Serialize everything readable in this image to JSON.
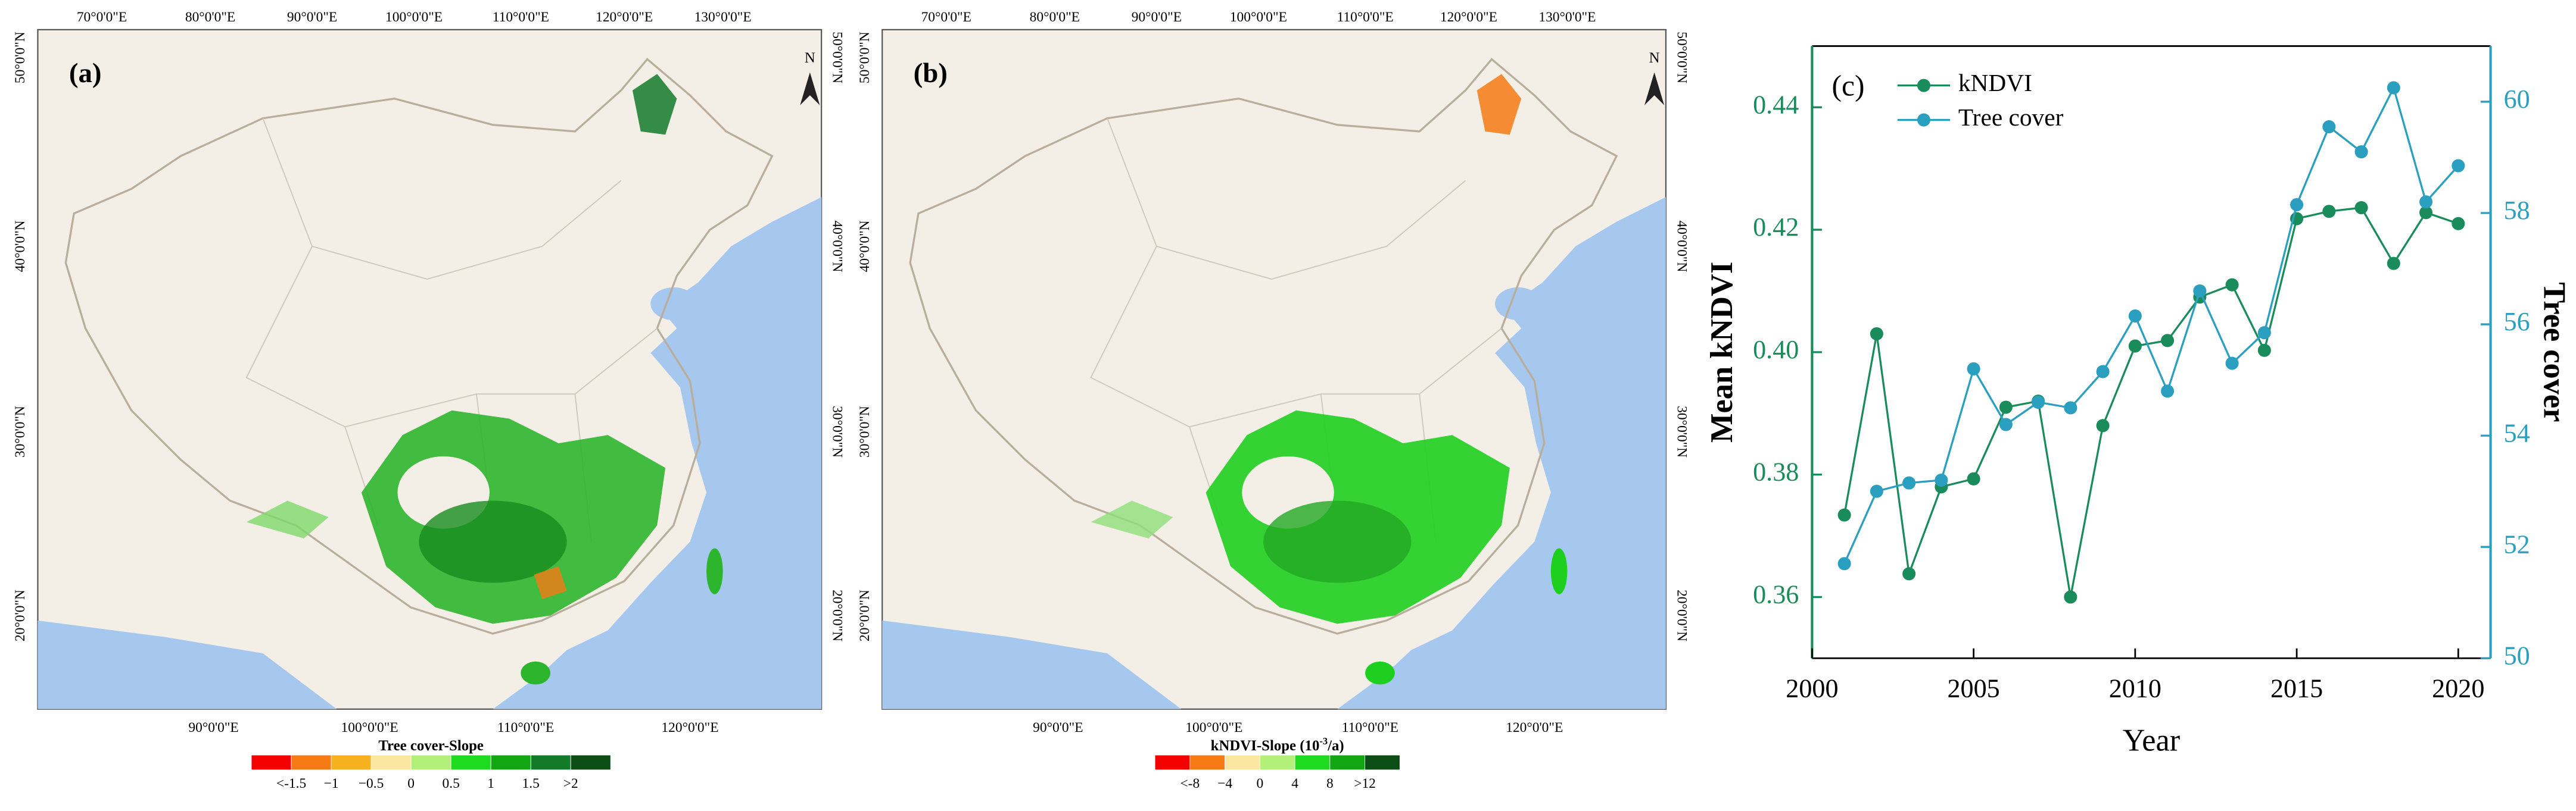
{
  "maps": [
    {
      "label": "(a)",
      "north": "N",
      "top_ticks": [
        "70°0'0\"E",
        "80°0'0\"E",
        "90°0'0\"E",
        "100°0'0\"E",
        "110°0'0\"E",
        "120°0'0\"E",
        "130°0'0\"E"
      ],
      "bottom_ticks": [
        "90°0'0\"E",
        "100°0'0\"E",
        "110°0'0\"E",
        "120°0'0\"E"
      ],
      "left_ticks": [
        "50°0'0\"N",
        "40°0'0\"N",
        "30°0'0\"N",
        "20°0'0\"N"
      ],
      "right_ticks": [
        "50°0'0\"N",
        "40°0'0\"N",
        "30°0'0\"N",
        "20°0'0\"N"
      ],
      "legend": {
        "title": "Tree cover-Slope",
        "colors": [
          "#f50000",
          "#f57a14",
          "#f7b01e",
          "#fae6a0",
          "#b2f07a",
          "#1fdb1f",
          "#12a612",
          "#137a2a",
          "#0b4d14"
        ],
        "labels": [
          "<-1.5",
          "−1",
          "−0.5",
          "0",
          "0.5",
          "1",
          "1.5",
          ">2"
        ]
      }
    },
    {
      "label": "(b)",
      "north": "N",
      "top_ticks": [
        "70°0'0\"E",
        "80°0'0\"E",
        "90°0'0\"E",
        "100°0'0\"E",
        "110°0'0\"E",
        "120°0'0\"E",
        "130°0'0\"E"
      ],
      "bottom_ticks": [
        "90°0'0\"E",
        "100°0'0\"E",
        "110°0'0\"E",
        "120°0'0\"E"
      ],
      "left_ticks": [
        "50°0'0\"N",
        "40°0'0\"N",
        "30°0'0\"N",
        "20°0'0\"N"
      ],
      "right_ticks": [
        "50°0'0\"N",
        "40°0'0\"N",
        "30°0'0\"N",
        "20°0'0\"N"
      ],
      "legend": {
        "title": "kNDVI-Slope (10",
        "title_sup": "-3",
        "title_end": "/a)",
        "colors": [
          "#f50000",
          "#f57a14",
          "#fae6a0",
          "#b2f07a",
          "#1fdb1f",
          "#12a612",
          "#0b4d14"
        ],
        "labels": [
          "<-8",
          "−4",
          "0",
          "4",
          "8",
          ">12"
        ]
      }
    }
  ],
  "chart_data": {
    "type": "line",
    "label": "(c)",
    "x": [
      2001,
      2002,
      2003,
      2004,
      2005,
      2006,
      2007,
      2008,
      2009,
      2010,
      2011,
      2012,
      2013,
      2014,
      2015,
      2016,
      2017,
      2018,
      2019,
      2020
    ],
    "series": [
      {
        "name": "kNDVI",
        "color": "#1a8c5b",
        "values": [
          0.3734,
          0.403,
          0.3638,
          0.378,
          0.3793,
          0.391,
          0.392,
          0.36,
          0.388,
          0.401,
          0.4019,
          0.409,
          0.411,
          0.4003,
          0.4218,
          0.423,
          0.4236,
          0.4145,
          0.4228,
          0.421
        ]
      },
      {
        "name": "Tree cover",
        "color": "#2a9fc0",
        "axis": "y2",
        "values": [
          51.7,
          53.0,
          53.15,
          53.2,
          55.2,
          54.2,
          54.6,
          54.5,
          55.15,
          56.15,
          54.8,
          56.6,
          55.3,
          55.85,
          58.15,
          59.55,
          59.1,
          60.25,
          58.2,
          58.85
        ]
      }
    ],
    "xlabel": "Year",
    "ylabel": "Mean kNDVI",
    "y2label": "Tree cover",
    "xlim": [
      2000,
      2021
    ],
    "xticks": [
      2000,
      2005,
      2010,
      2015,
      2020
    ],
    "ylim": [
      0.35,
      0.45
    ],
    "yticks": [
      0.36,
      0.38,
      {
        "value": 0.4,
        "label": "0.40"
      },
      0.42,
      0.44
    ],
    "y2lim": [
      50,
      61
    ],
    "y2ticks": [
      50,
      52,
      54,
      56,
      58,
      60
    ],
    "legend": "upper left"
  }
}
